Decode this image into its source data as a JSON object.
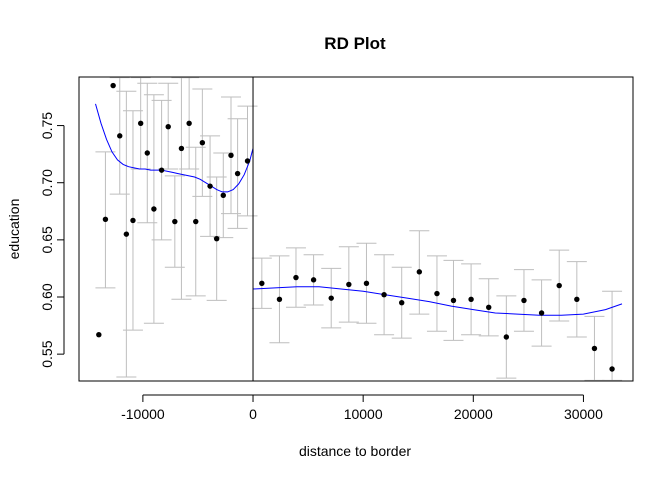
{
  "chart_data": {
    "type": "scatter",
    "title": "RD Plot",
    "xlabel": "distance to border",
    "ylabel": "education",
    "xlim": [
      -15800,
      34500
    ],
    "ylim": [
      0.5265,
      0.7925
    ],
    "x_ticks": [
      -10000,
      0,
      10000,
      20000,
      30000
    ],
    "x_tick_labels": [
      "-10000",
      "0",
      "10000",
      "20000",
      "30000"
    ],
    "y_ticks": [
      0.55,
      0.6,
      0.65,
      0.7,
      0.75
    ],
    "y_tick_labels": [
      "0.55",
      "0.60",
      "0.65",
      "0.70",
      "0.75"
    ],
    "cutoff": 0,
    "grid": false,
    "legend": "none",
    "colors": {
      "points": "#000000",
      "error_bars": "#bebebe",
      "fit_line": "#0000ff",
      "axes": "#000000",
      "cutoff_line": "#000000"
    },
    "series": [
      {
        "points": [
          {
            "x": -14000,
            "y": 0.567,
            "lo": 0.567,
            "hi": 0.567
          },
          {
            "x": -13400,
            "y": 0.668,
            "lo": 0.608,
            "hi": 0.727
          },
          {
            "x": -12700,
            "y": 0.785,
            "lo": 0.785,
            "hi": 0.785
          },
          {
            "x": -12100,
            "y": 0.741,
            "lo": 0.69,
            "hi": 0.792
          },
          {
            "x": -11500,
            "y": 0.655,
            "lo": 0.53,
            "hi": 0.78
          },
          {
            "x": -10900,
            "y": 0.667,
            "lo": 0.571,
            "hi": 0.763
          },
          {
            "x": -10200,
            "y": 0.752,
            "lo": 0.712,
            "hi": 0.792
          },
          {
            "x": -9600,
            "y": 0.726,
            "lo": 0.665,
            "hi": 0.787
          },
          {
            "x": -9000,
            "y": 0.677,
            "lo": 0.577,
            "hi": 0.777
          },
          {
            "x": -8300,
            "y": 0.711,
            "lo": 0.65,
            "hi": 0.772
          },
          {
            "x": -7700,
            "y": 0.749,
            "lo": 0.712,
            "hi": 0.787
          },
          {
            "x": -7100,
            "y": 0.666,
            "lo": 0.626,
            "hi": 0.706
          },
          {
            "x": -6500,
            "y": 0.73,
            "lo": 0.598,
            "hi": 0.792
          },
          {
            "x": -5800,
            "y": 0.752,
            "lo": 0.712,
            "hi": 0.792
          },
          {
            "x": -5200,
            "y": 0.666,
            "lo": 0.601,
            "hi": 0.731
          },
          {
            "x": -4600,
            "y": 0.735,
            "lo": 0.688,
            "hi": 0.782
          },
          {
            "x": -3900,
            "y": 0.697,
            "lo": 0.653,
            "hi": 0.741
          },
          {
            "x": -3300,
            "y": 0.651,
            "lo": 0.597,
            "hi": 0.705
          },
          {
            "x": -2700,
            "y": 0.689,
            "lo": 0.652,
            "hi": 0.726
          },
          {
            "x": -2000,
            "y": 0.724,
            "lo": 0.673,
            "hi": 0.775
          },
          {
            "x": -1400,
            "y": 0.708,
            "lo": 0.66,
            "hi": 0.756
          },
          {
            "x": -500,
            "y": 0.719,
            "lo": 0.671,
            "hi": 0.767
          },
          {
            "x": 800,
            "y": 0.612,
            "lo": 0.59,
            "hi": 0.634
          },
          {
            "x": 2400,
            "y": 0.598,
            "lo": 0.56,
            "hi": 0.636
          },
          {
            "x": 3900,
            "y": 0.617,
            "lo": 0.591,
            "hi": 0.643
          },
          {
            "x": 5500,
            "y": 0.615,
            "lo": 0.593,
            "hi": 0.637
          },
          {
            "x": 7100,
            "y": 0.599,
            "lo": 0.573,
            "hi": 0.625
          },
          {
            "x": 8700,
            "y": 0.611,
            "lo": 0.578,
            "hi": 0.644
          },
          {
            "x": 10300,
            "y": 0.612,
            "lo": 0.577,
            "hi": 0.647
          },
          {
            "x": 11900,
            "y": 0.602,
            "lo": 0.567,
            "hi": 0.637
          },
          {
            "x": 13500,
            "y": 0.595,
            "lo": 0.564,
            "hi": 0.626
          },
          {
            "x": 15100,
            "y": 0.622,
            "lo": 0.585,
            "hi": 0.658
          },
          {
            "x": 16700,
            "y": 0.603,
            "lo": 0.57,
            "hi": 0.636
          },
          {
            "x": 18200,
            "y": 0.597,
            "lo": 0.562,
            "hi": 0.632
          },
          {
            "x": 19800,
            "y": 0.598,
            "lo": 0.567,
            "hi": 0.629
          },
          {
            "x": 21400,
            "y": 0.591,
            "lo": 0.566,
            "hi": 0.616
          },
          {
            "x": 23000,
            "y": 0.565,
            "lo": 0.529,
            "hi": 0.601
          },
          {
            "x": 24600,
            "y": 0.597,
            "lo": 0.57,
            "hi": 0.624
          },
          {
            "x": 26200,
            "y": 0.586,
            "lo": 0.557,
            "hi": 0.615
          },
          {
            "x": 27800,
            "y": 0.61,
            "lo": 0.579,
            "hi": 0.641
          },
          {
            "x": 29400,
            "y": 0.598,
            "lo": 0.565,
            "hi": 0.631
          },
          {
            "x": 31000,
            "y": 0.555,
            "lo": 0.527,
            "hi": 0.583
          },
          {
            "x": 32600,
            "y": 0.537,
            "lo": 0.527,
            "hi": 0.605
          }
        ]
      }
    ],
    "fit_left": {
      "x": [
        -14300,
        -13800,
        -13300,
        -12800,
        -12300,
        -11800,
        -11300,
        -10800,
        -10300,
        -9800,
        -9300,
        -8800,
        -8300,
        -7800,
        -7300,
        -6800,
        -6300,
        -5800,
        -5300,
        -4800,
        -4300,
        -3800,
        -3300,
        -2800,
        -2300,
        -1800,
        -1300,
        -800,
        -300,
        0
      ],
      "y": [
        0.769,
        0.752,
        0.738,
        0.727,
        0.72,
        0.716,
        0.714,
        0.713,
        0.712,
        0.712,
        0.711,
        0.711,
        0.711,
        0.71,
        0.709,
        0.708,
        0.707,
        0.706,
        0.705,
        0.703,
        0.7,
        0.697,
        0.694,
        0.692,
        0.692,
        0.694,
        0.699,
        0.707,
        0.719,
        0.73
      ]
    },
    "fit_right": {
      "x": [
        0,
        2000,
        4000,
        6000,
        8000,
        10000,
        12000,
        14000,
        16000,
        18000,
        20000,
        22000,
        24000,
        26000,
        28000,
        30000,
        32000,
        33500
      ],
      "y": [
        0.607,
        0.608,
        0.609,
        0.609,
        0.607,
        0.605,
        0.602,
        0.599,
        0.596,
        0.592,
        0.589,
        0.586,
        0.585,
        0.584,
        0.584,
        0.585,
        0.589,
        0.594
      ]
    }
  }
}
